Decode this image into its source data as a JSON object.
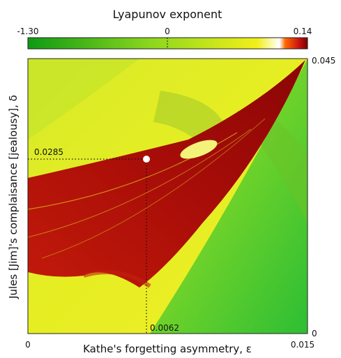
{
  "chart_data": {
    "type": "heatmap",
    "title": "Lyapunov exponent",
    "xlabel": "Kathe's forgetting asymmetry, ε",
    "ylabel": "Jules [Jim]'s complaisance [jealousy], δ",
    "xlim": [
      0,
      0.015
    ],
    "ylim": [
      0,
      0.045
    ],
    "x_ticks": [
      "0",
      "0.015"
    ],
    "y_ticks": [
      "0",
      "0.045"
    ],
    "colorbar": {
      "range": [
        -1.3,
        0.14
      ],
      "ticks": [
        "-1.30",
        "0",
        "0.14"
      ],
      "colors": [
        "#0e9a14",
        "#8fd81e",
        "#f2ee1a",
        "#ffffff",
        "#ff6a00",
        "#c81212",
        "#7a0000"
      ]
    },
    "marked_point": {
      "x": 0.0062,
      "y": 0.0285,
      "x_label": "0.0062",
      "y_label": "0.0285"
    }
  }
}
